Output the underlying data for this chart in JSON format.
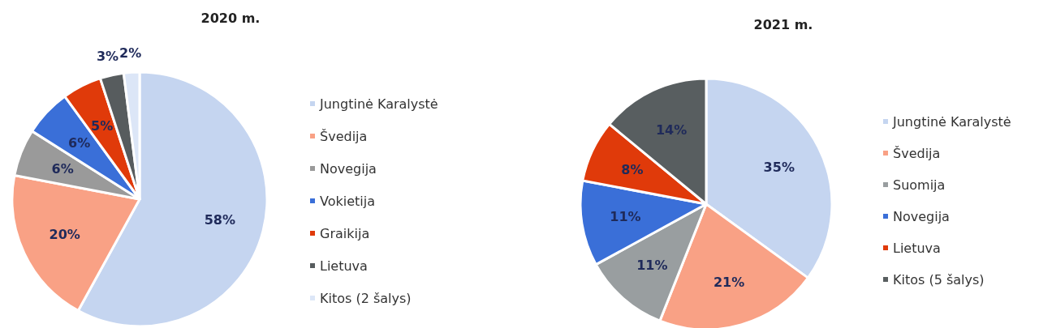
{
  "chart_data": [
    {
      "type": "pie",
      "title": "2020 m.",
      "categories": [
        "Jungtinė Karalystė",
        "Švedija",
        "Novegija",
        "Vokietija",
        "Graikija",
        "Lietuva",
        "Kitos (2 šalys)"
      ],
      "values": [
        58,
        20,
        6,
        6,
        5,
        3,
        2
      ],
      "value_labels": [
        "58%",
        "20%",
        "6%",
        "6%",
        "5%",
        "3%",
        "2%"
      ],
      "colors": [
        "#c5d5f0",
        "#f9a185",
        "#9a9a9a",
        "#3a6fd8",
        "#e03a0a",
        "#575c5e",
        "#dce6f7"
      ],
      "legend": "right"
    },
    {
      "type": "pie",
      "title": "2021 m.",
      "categories": [
        "Jungtinė Karalystė",
        "Švedija",
        "Suomija",
        "Novegija",
        "Lietuva",
        "Kitos (5 šalys)"
      ],
      "values": [
        35,
        21,
        11,
        11,
        8,
        14
      ],
      "value_labels": [
        "35%",
        "21%",
        "11%",
        "11%",
        "8%",
        "14%"
      ],
      "colors": [
        "#c5d5f0",
        "#f9a185",
        "#999ea0",
        "#3a6fd8",
        "#e03a0a",
        "#585e60"
      ],
      "legend": "right"
    }
  ]
}
